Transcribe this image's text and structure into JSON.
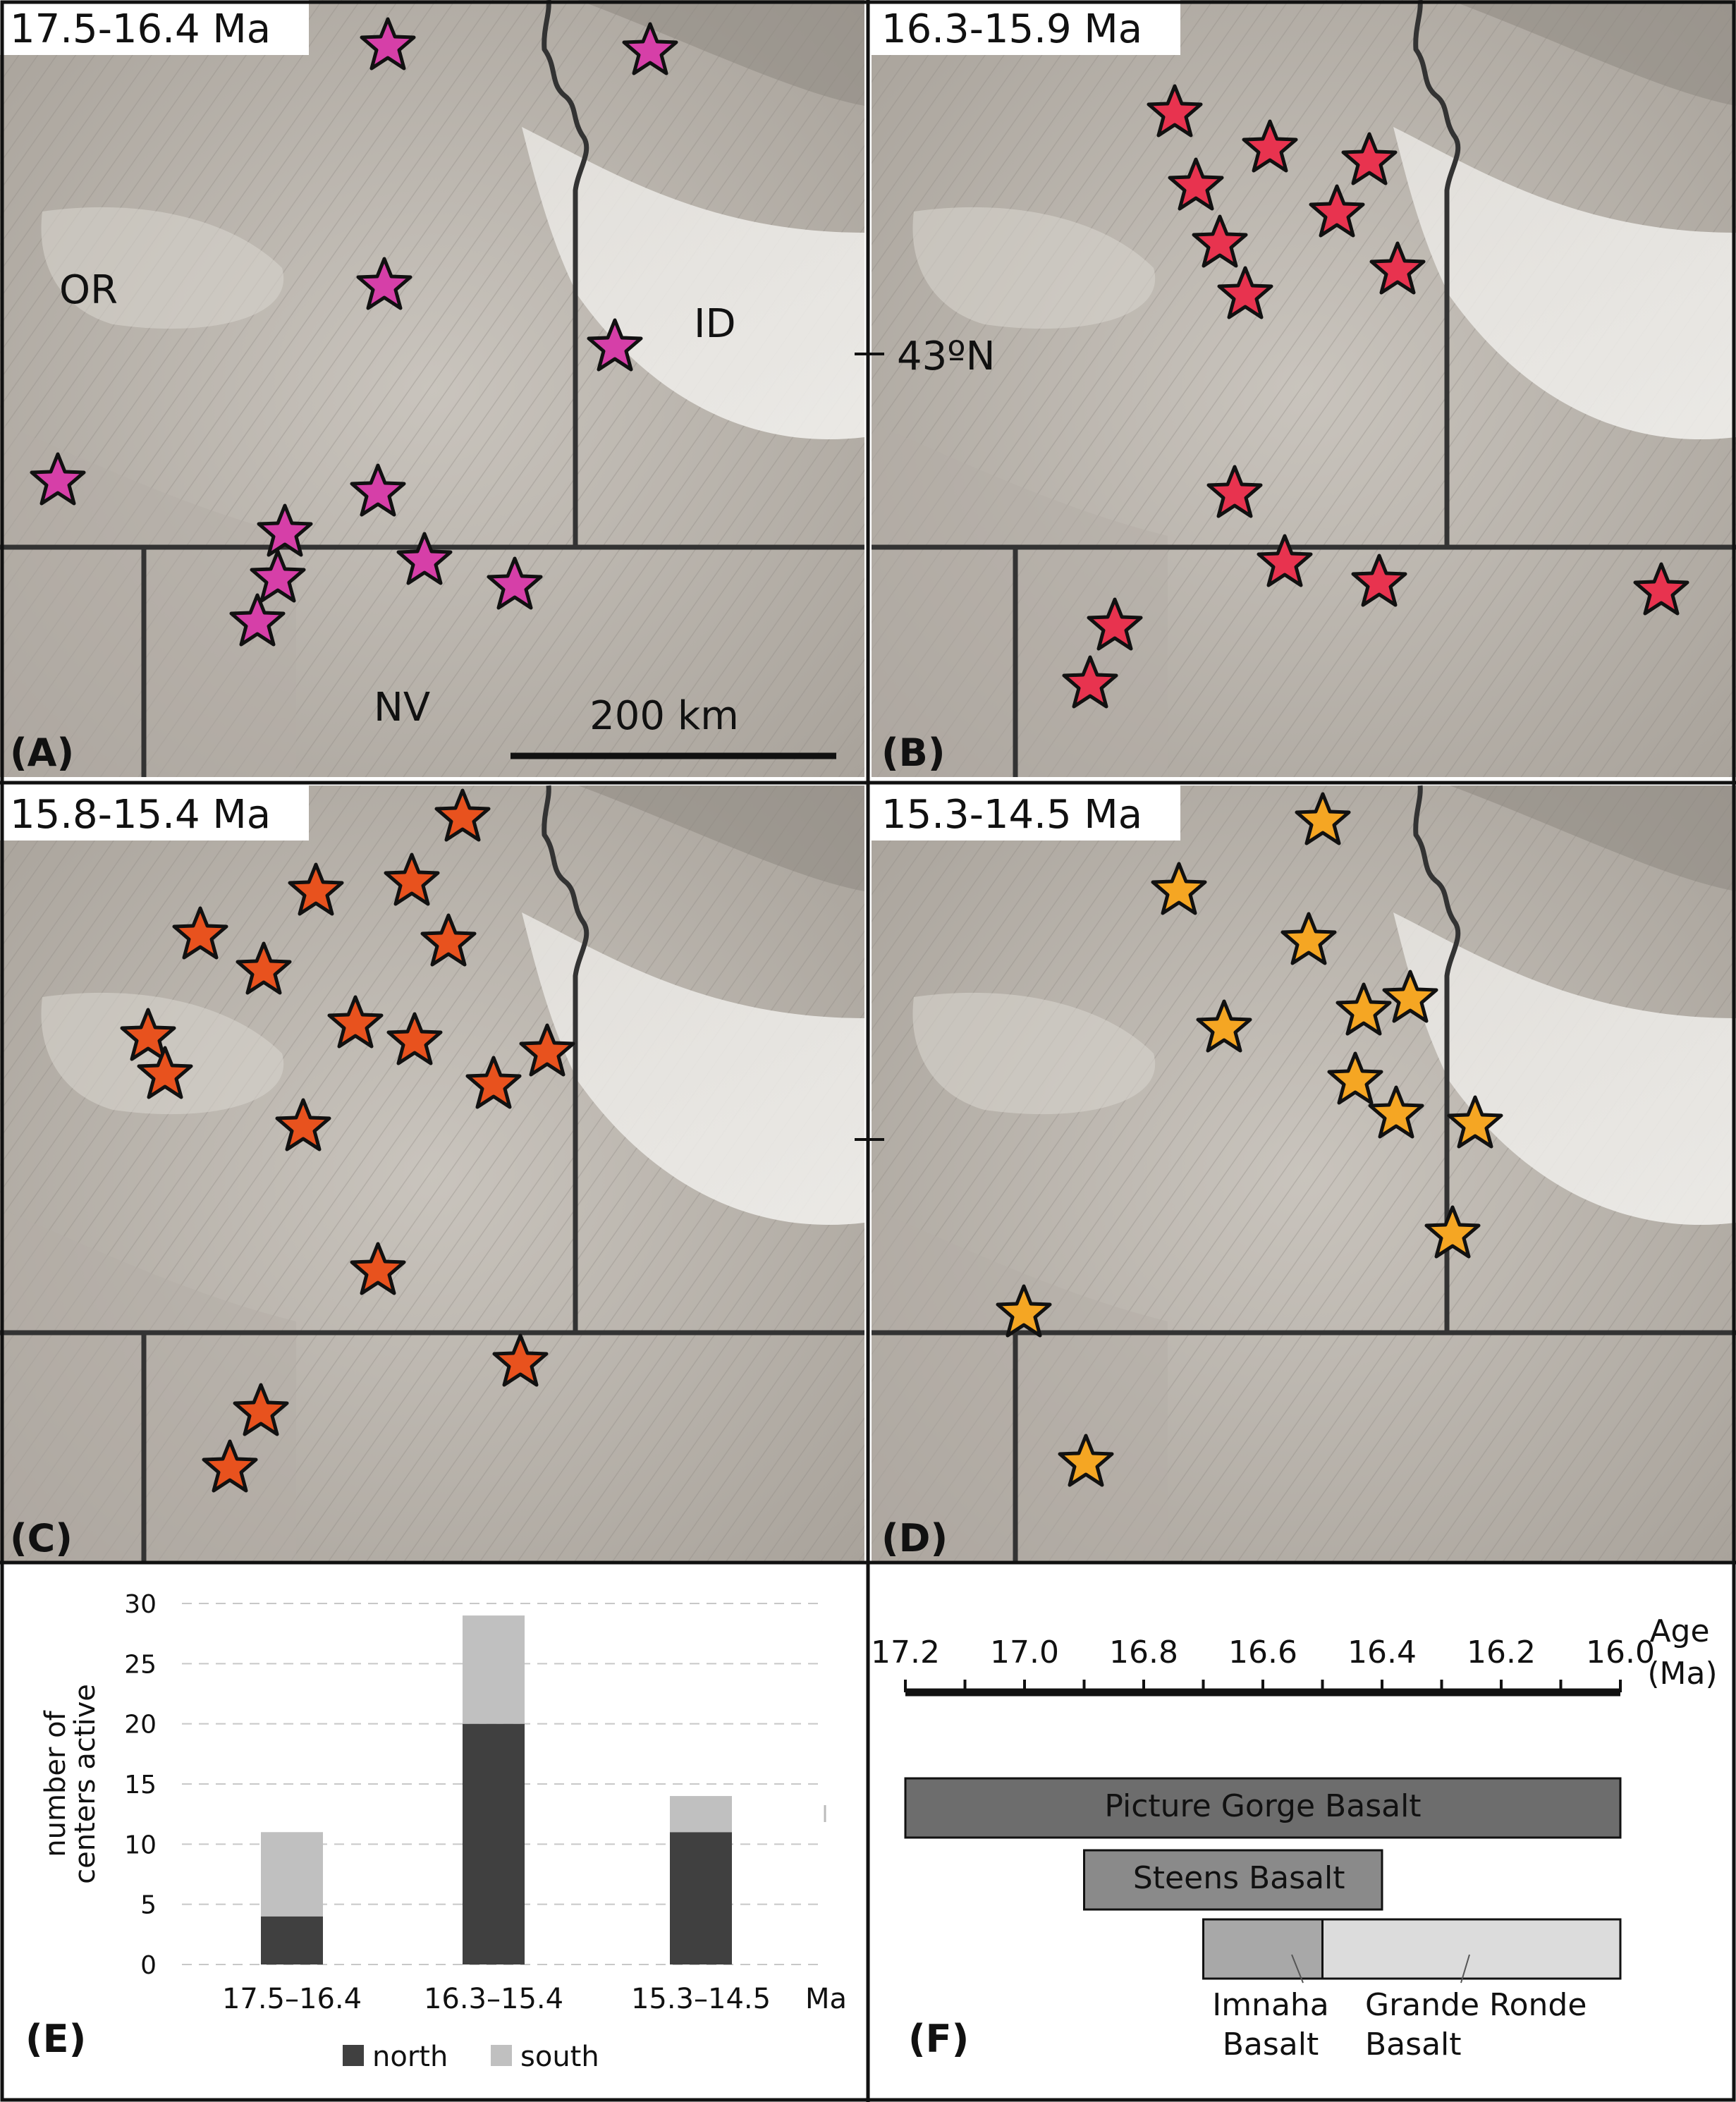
{
  "maps": [
    {
      "id": "A",
      "label": "(A)",
      "title": "17.5-16.4 Ma",
      "star_color": "#d63fa8",
      "states": {
        "or": "OR",
        "id": "ID",
        "nv": "NV"
      },
      "scale_label": "200 km"
    },
    {
      "id": "B",
      "label": "(B)",
      "title": "16.3-15.9 Ma",
      "star_color": "#e8334f",
      "latitude_label": "43ºN"
    },
    {
      "id": "C",
      "label": "(C)",
      "title": "15.8-15.4 Ma",
      "star_color": "#e8521e"
    },
    {
      "id": "D",
      "label": "(D)",
      "title": "15.3-14.5 Ma",
      "star_color": "#f5a623"
    }
  ],
  "chart_data": [
    {
      "type": "bar",
      "panel": "(E)",
      "stacked": true,
      "categories": [
        "17.5–16.4",
        "16.3–15.4",
        "15.3–14.5"
      ],
      "x_unit": "Ma",
      "ylabel": "number of centers active",
      "ylim": [
        0,
        30
      ],
      "yticks": [
        0,
        5,
        10,
        15,
        20,
        25,
        30
      ],
      "grid": "dashed horizontal",
      "legend_position": "bottom",
      "series": [
        {
          "name": "north",
          "color": "#404040",
          "values": [
            4,
            20,
            11
          ]
        },
        {
          "name": "south",
          "color": "#c0c0c0",
          "values": [
            7,
            9,
            3
          ]
        }
      ]
    },
    {
      "type": "timeline",
      "panel": "(F)",
      "axis_label": "Age (Ma)",
      "xlim": [
        17.2,
        16.0
      ],
      "ticks": [
        "17.2",
        "17.0",
        "16.8",
        "16.6",
        "16.4",
        "16.2",
        "16.0"
      ],
      "bars": [
        {
          "name": "Picture Gorge Basalt",
          "start": 17.2,
          "end": 16.0,
          "color": "#6d6d6d"
        },
        {
          "name": "Steens Basalt",
          "start": 16.9,
          "end": 16.4,
          "color": "#8a8a8a"
        },
        {
          "name": "Imnaha Basalt",
          "start": 16.7,
          "end": 16.5,
          "color": "#a8a8a8"
        },
        {
          "name": "Grande Ronde Basalt",
          "start": 16.5,
          "end": 16.0,
          "color": "#dcdcdc"
        }
      ]
    }
  ]
}
